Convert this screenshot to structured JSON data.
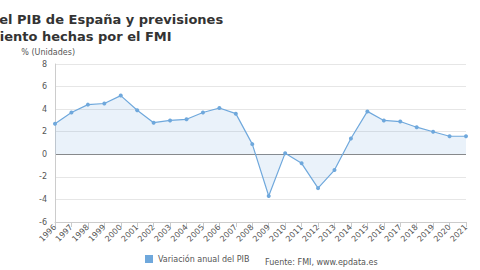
{
  "chart_data": {
    "type": "line",
    "title": "Variación anual del PIB de España y previsiones de crecimiento hechas por el FMI",
    "y_label": "% (Unidades)",
    "source": "Fuente: FMI, www.epdata.es",
    "categories": [
      "1996",
      "1997",
      "1998",
      "1999",
      "2000",
      "2001",
      "2002",
      "2003",
      "2004",
      "2005",
      "2006",
      "2007",
      "2008",
      "2009",
      "2010",
      "2011",
      "2012",
      "2013",
      "2014",
      "2015",
      "2016",
      "2017",
      "2018",
      "2019",
      "2020",
      "2021"
    ],
    "series": [
      {
        "name": "Variación anual del PIB",
        "color": "#6fa8dc",
        "marker": "circle",
        "values": [
          2.7,
          3.7,
          4.4,
          4.5,
          5.2,
          3.9,
          2.8,
          3.0,
          3.1,
          3.7,
          4.1,
          3.6,
          0.9,
          -3.7,
          0.1,
          -0.8,
          -3.0,
          -1.4,
          1.4,
          3.8,
          3.0,
          2.9,
          2.4,
          2.0,
          1.6,
          1.6
        ]
      }
    ],
    "ylim": [
      -6,
      8
    ],
    "yticks": [
      -6,
      -4,
      -2,
      0,
      2,
      4,
      6,
      8
    ],
    "grid": true,
    "legend": "bottom"
  }
}
